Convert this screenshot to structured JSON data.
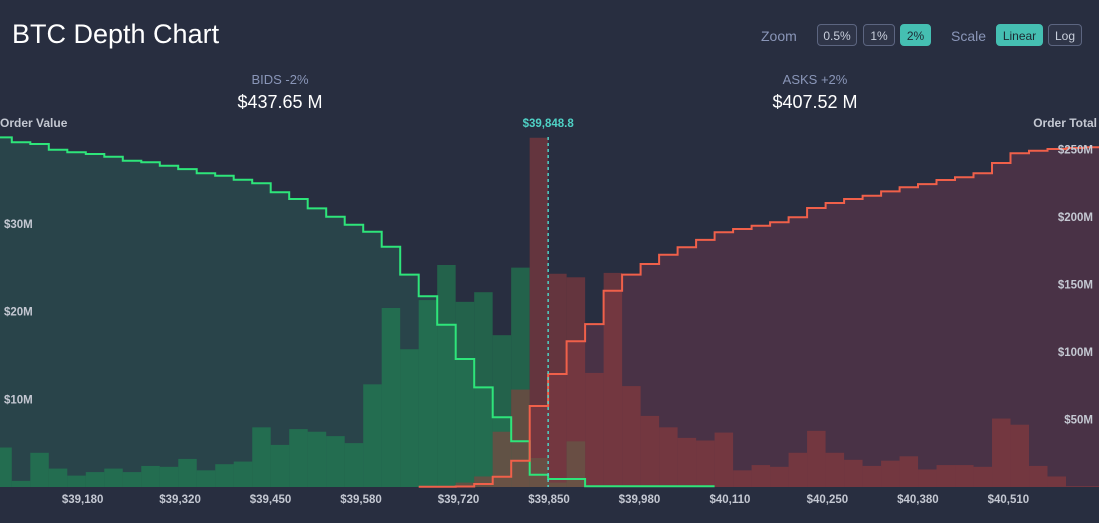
{
  "header": {
    "title": "BTC Depth Chart",
    "zoom_label": "Zoom",
    "zoom_options": [
      "0.5%",
      "1%",
      "2%"
    ],
    "zoom_selected": "2%",
    "scale_label": "Scale",
    "scale_options": [
      "Linear",
      "Log"
    ],
    "scale_selected": "Linear"
  },
  "summary": {
    "bids_label": "BIDS -2%",
    "bids_value": "$437.65 M",
    "asks_label": "ASKS +2%",
    "asks_value": "$407.52 M"
  },
  "colors": {
    "background": "#282e40",
    "bid_line": "#2ee57a",
    "ask_line": "#f0604a",
    "mid_line": "#4fd1c5",
    "accent": "#45bfb2"
  },
  "chart_data": {
    "type": "bar",
    "left_axis_title": "Order Value",
    "right_axis_title": "Order Total",
    "mid_price": 39848.8,
    "mid_price_label": "$39,848.8",
    "bin_size": 26.57,
    "range_start": 39051.7,
    "xlim": [
      39051.7,
      40645.9
    ],
    "ylim_left": [
      0,
      40
    ],
    "ylim_right": [
      0,
      260
    ],
    "x_ticks": [
      39180,
      39320,
      39450,
      39580,
      39720,
      39850,
      39980,
      40110,
      40250,
      40380,
      40510
    ],
    "x_tick_labels": [
      "$39,180",
      "$39,320",
      "$39,450",
      "$39,580",
      "$39,720",
      "$39,850",
      "$39,980",
      "$40,110",
      "$40,250",
      "$40,380",
      "$40,510"
    ],
    "left_ticks": [
      10,
      20,
      30
    ],
    "left_tick_labels": [
      "$10M",
      "$20M",
      "$30M"
    ],
    "right_ticks": [
      50,
      100,
      150,
      200,
      250
    ],
    "right_tick_labels": [
      "$50M",
      "$100M",
      "$150M",
      "$200M",
      "$250M"
    ],
    "bid_value": [
      4.5,
      0.7,
      3.9,
      2.1,
      1.3,
      1.7,
      2.1,
      1.7,
      2.4,
      2.3,
      3.2,
      1.9,
      2.6,
      2.9,
      6.8,
      4.8,
      6.6,
      6.3,
      5.8,
      5.0,
      11.7,
      20.4,
      15.7,
      21.3,
      25.3,
      21.1,
      22.2,
      17.3,
      25.0,
      3.3,
      0.5,
      5.2,
      0,
      0,
      0,
      0,
      0,
      0,
      0,
      0,
      0,
      0,
      0,
      0,
      0,
      0,
      0,
      0,
      0,
      0,
      0,
      0,
      0,
      0,
      0,
      0,
      0,
      0,
      0,
      0
    ],
    "bid_total": [
      259.0,
      255.3,
      254.1,
      249.8,
      247.9,
      246.7,
      244.7,
      241.7,
      240.5,
      238.0,
      235.5,
      232.4,
      230.6,
      227.6,
      225.0,
      218.3,
      213.3,
      206.4,
      200.2,
      194.3,
      189.1,
      178.0,
      157.3,
      141.3,
      120.2,
      94.8,
      73.8,
      51.6,
      33.9,
      9.1,
      5.9,
      5.9,
      0.5,
      0.5,
      0.5,
      0.5,
      0.5,
      0.5,
      0.5,
      null,
      null,
      null,
      null,
      null,
      null,
      null,
      null,
      null,
      null,
      null,
      null,
      null,
      null,
      null,
      null,
      null,
      null,
      null,
      null,
      null
    ],
    "ask_value": [
      0,
      0,
      0,
      0,
      0,
      0,
      0,
      0,
      0,
      0,
      0,
      0,
      0,
      0,
      0,
      0,
      0,
      0,
      0,
      0,
      0,
      0,
      0,
      0,
      0,
      0.5,
      1.2,
      6.3,
      11.1,
      39.8,
      24.3,
      23.9,
      13.0,
      24.4,
      11.5,
      8.1,
      6.8,
      5.6,
      5.3,
      6.2,
      1.9,
      2.5,
      2.3,
      3.9,
      6.4,
      3.9,
      3.1,
      2.4,
      3.0,
      3.5,
      2.0,
      2.5,
      2.5,
      2.3,
      7.8,
      7.1,
      2.4,
      1.2,
      0.1,
      0.1
    ],
    "ask_total": [
      null,
      null,
      null,
      null,
      null,
      null,
      null,
      null,
      null,
      null,
      null,
      null,
      null,
      null,
      null,
      null,
      null,
      null,
      null,
      null,
      null,
      null,
      null,
      0.2,
      0.2,
      0.4,
      2.2,
      7.6,
      19.5,
      60.0,
      83.7,
      107.9,
      120.7,
      145.4,
      157.3,
      165.2,
      172.1,
      177.6,
      183.0,
      188.7,
      191.1,
      193.5,
      196.1,
      199.8,
      206.7,
      210.4,
      213.3,
      215.8,
      219.0,
      222.0,
      224.4,
      227.4,
      229.4,
      232.4,
      240.0,
      247.2,
      249.1,
      250.4,
      251.1,
      251.6
    ],
    "grid": false,
    "legend": "none"
  }
}
